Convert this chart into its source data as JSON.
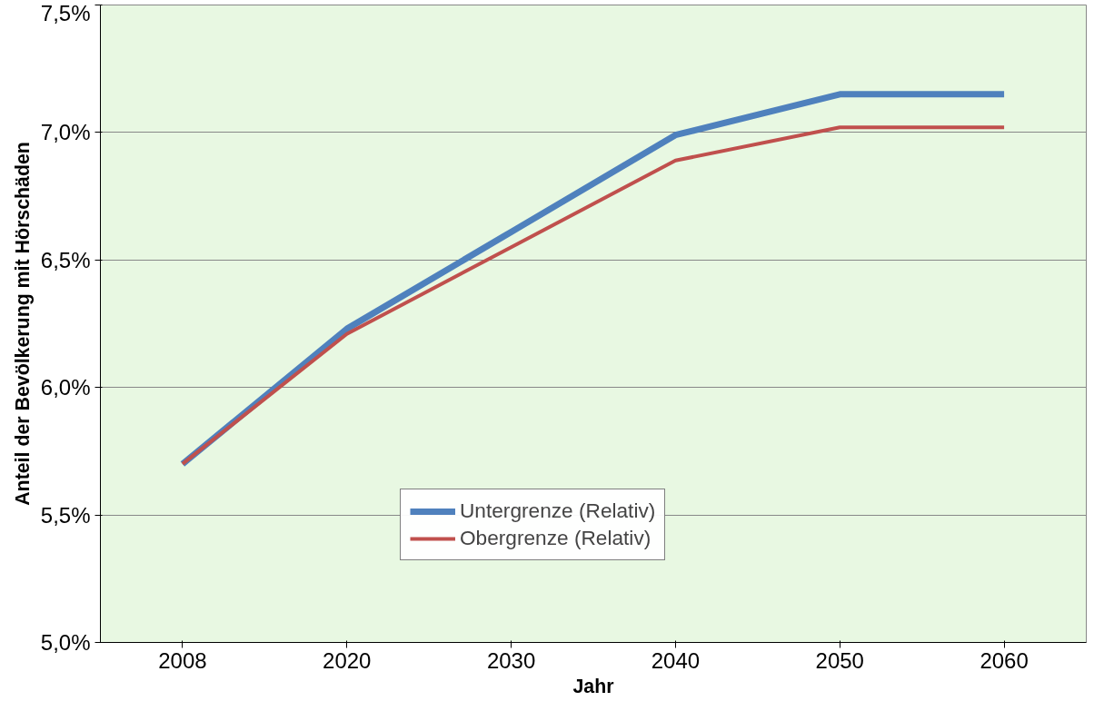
{
  "chart_data": {
    "type": "line",
    "xlabel": "Jahr",
    "ylabel": "Anteil der Bevölkerung mit Hörschäden",
    "categories": [
      "2008",
      "2020",
      "2030",
      "2040",
      "2050",
      "2060"
    ],
    "series": [
      {
        "name": "Untergrenze (Relativ)",
        "color": "#4f81bd",
        "values": [
          5.7,
          6.23,
          6.61,
          6.99,
          7.15,
          7.15
        ]
      },
      {
        "name": "Obergrenze (Relativ)",
        "color": "#c0504d",
        "values": [
          5.7,
          6.21,
          6.55,
          6.89,
          7.02,
          7.02
        ]
      }
    ],
    "ylim": [
      5.0,
      7.5
    ],
    "yticks": [
      {
        "value": 5.0,
        "label": "5,0%"
      },
      {
        "value": 5.5,
        "label": "5,5%"
      },
      {
        "value": 6.0,
        "label": "6,0%"
      },
      {
        "value": 6.5,
        "label": "6,5%"
      },
      {
        "value": 7.0,
        "label": "7,0%"
      },
      {
        "value": 7.5,
        "label": "7,5%"
      }
    ],
    "grid": "y",
    "legend": "bottom",
    "marker": "none",
    "line_style": "solid"
  }
}
